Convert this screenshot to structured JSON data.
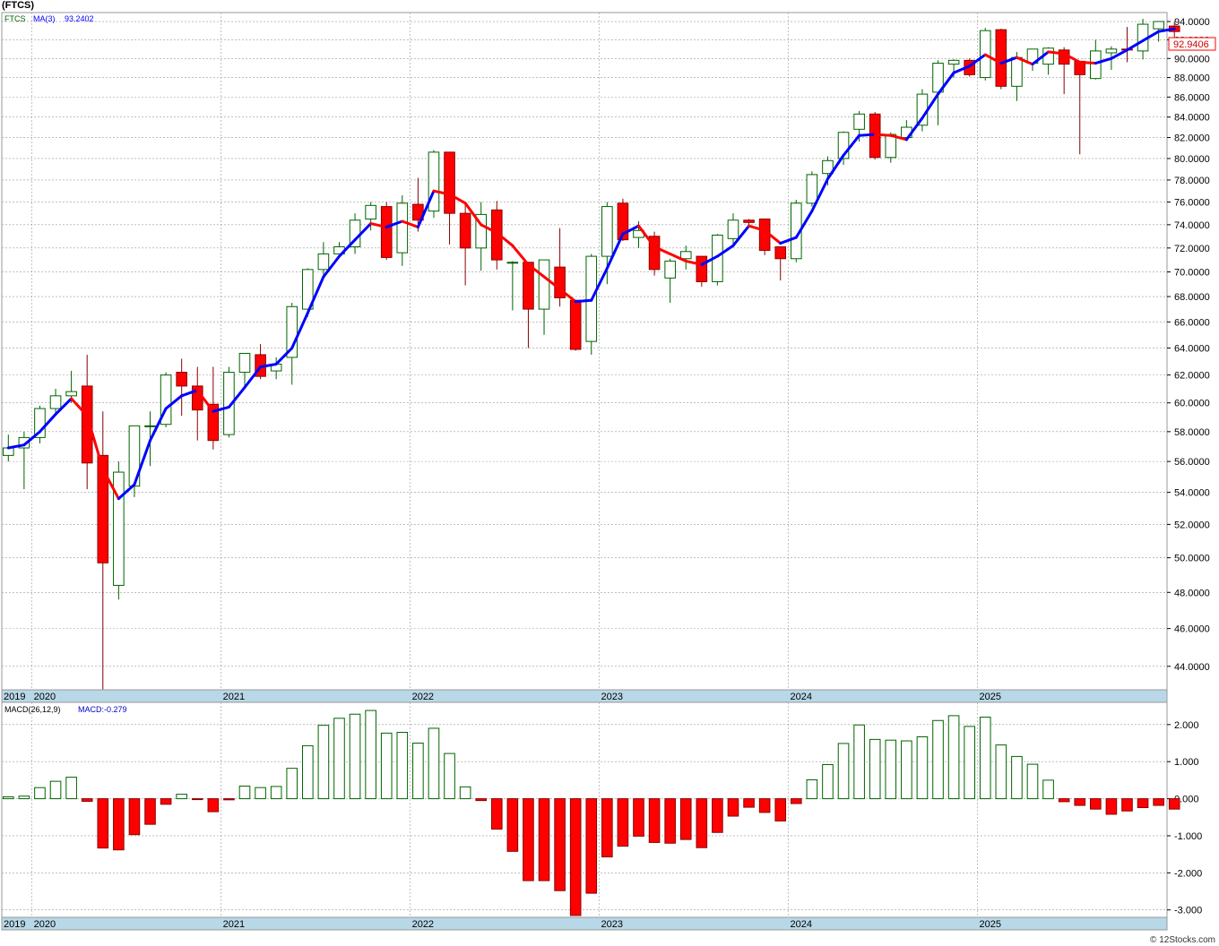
{
  "ticker_title": "(FTCS)",
  "credit": "© 12Stocks.com",
  "price_panel": {
    "legend_symbol": "FTCS",
    "legend_ma_label": "MA(3)",
    "legend_ma_value": "93.2402",
    "last_price_label": "92.9406"
  },
  "macd_panel": {
    "legend_macd_params": "MACD(26,12,9)",
    "legend_macd_value": "MACD:-0.279"
  },
  "colors": {
    "up_fill": "#ffffff",
    "up_stroke": "#006400",
    "down_fill": "#ff0000",
    "down_stroke": "#8b0000",
    "ma_up": "#0000ff",
    "ma_down": "#ff0000",
    "axis_band": "#b8d8e8",
    "grid": "#999999"
  },
  "chart_data": [
    {
      "type": "candlestick",
      "title": "(FTCS)",
      "interval": "monthly",
      "x_start": "2019-11",
      "x_tick_labels": [
        "2019",
        "2020",
        "2021",
        "2022",
        "2023",
        "2024",
        "2025"
      ],
      "y_tick_labels": [
        "44.0000",
        "46.0000",
        "48.0000",
        "50.0000",
        "52.0000",
        "54.0000",
        "56.0000",
        "58.0000",
        "60.0000",
        "62.0000",
        "64.0000",
        "66.0000",
        "68.0000",
        "70.0000",
        "72.0000",
        "74.0000",
        "76.0000",
        "78.0000",
        "80.0000",
        "82.0000",
        "84.0000",
        "86.0000",
        "88.0000",
        "90.0000",
        "92.0000",
        "94.0000"
      ],
      "ylim": [
        42.8,
        95.0
      ],
      "y_scale": "log",
      "grid": true,
      "ohlc": [
        [
          56.4,
          57.8,
          56.0,
          56.9
        ],
        [
          56.9,
          58.0,
          54.2,
          57.6
        ],
        [
          57.6,
          59.8,
          57.2,
          59.6
        ],
        [
          59.6,
          61.0,
          59.1,
          60.5
        ],
        [
          60.5,
          62.3,
          60.0,
          60.8
        ],
        [
          61.2,
          63.5,
          54.2,
          55.9
        ],
        [
          56.4,
          59.4,
          42.8,
          49.7
        ],
        [
          48.4,
          56.0,
          47.6,
          55.3
        ],
        [
          54.4,
          58.4,
          53.7,
          58.4
        ],
        [
          58.4,
          59.4,
          55.7,
          58.4
        ],
        [
          58.5,
          62.2,
          58.3,
          62.0
        ],
        [
          62.2,
          63.2,
          59.1,
          61.2
        ],
        [
          61.2,
          62.6,
          57.4,
          59.5
        ],
        [
          59.9,
          62.6,
          56.8,
          57.4
        ],
        [
          57.8,
          62.6,
          57.6,
          62.2
        ],
        [
          62.2,
          63.6,
          61.2,
          63.6
        ],
        [
          63.5,
          64.3,
          61.7,
          61.9
        ],
        [
          62.3,
          63.3,
          61.7,
          62.8
        ],
        [
          63.3,
          67.5,
          61.3,
          67.2
        ],
        [
          67.0,
          70.3,
          66.4,
          70.2
        ],
        [
          70.2,
          72.5,
          69.6,
          71.5
        ],
        [
          71.5,
          72.5,
          71.5,
          72.1
        ],
        [
          72.1,
          75.0,
          71.5,
          74.4
        ],
        [
          74.5,
          76.0,
          73.5,
          75.7
        ],
        [
          75.6,
          76.0,
          71.0,
          71.2
        ],
        [
          71.6,
          76.6,
          70.5,
          75.9
        ],
        [
          75.8,
          78.2,
          73.4,
          74.4
        ],
        [
          75.2,
          80.8,
          74.6,
          80.6
        ],
        [
          80.6,
          80.6,
          72.3,
          75.0
        ],
        [
          75.0,
          75.9,
          68.9,
          72.0
        ],
        [
          72.0,
          76.0,
          70.1,
          74.9
        ],
        [
          75.3,
          76.1,
          70.2,
          71.0
        ],
        [
          70.8,
          70.9,
          66.9,
          70.8
        ],
        [
          70.8,
          70.8,
          64.0,
          67.0
        ],
        [
          67.0,
          71.0,
          65.0,
          71.0
        ],
        [
          70.4,
          73.7,
          67.2,
          67.9
        ],
        [
          67.7,
          67.7,
          63.8,
          63.9
        ],
        [
          64.5,
          71.5,
          63.5,
          71.3
        ],
        [
          71.3,
          76.0,
          69.0,
          75.6
        ],
        [
          75.9,
          76.3,
          72.6,
          72.7
        ],
        [
          72.9,
          74.3,
          72.0,
          73.5
        ],
        [
          73.0,
          73.4,
          69.7,
          70.2
        ],
        [
          69.5,
          71.1,
          67.5,
          70.9
        ],
        [
          71.1,
          72.2,
          70.2,
          71.7
        ],
        [
          71.3,
          71.3,
          68.8,
          69.2
        ],
        [
          69.2,
          73.2,
          68.9,
          73.1
        ],
        [
          72.8,
          75.0,
          72.1,
          74.4
        ],
        [
          74.4,
          74.5,
          74.0,
          74.2
        ],
        [
          74.5,
          74.5,
          71.4,
          71.8
        ],
        [
          72.1,
          72.1,
          69.3,
          71.1
        ],
        [
          71.1,
          76.2,
          70.8,
          75.9
        ],
        [
          75.9,
          78.8,
          75.6,
          78.5
        ],
        [
          78.6,
          80.2,
          77.5,
          79.8
        ],
        [
          80.0,
          82.6,
          79.4,
          82.5
        ],
        [
          82.8,
          84.6,
          81.6,
          84.3
        ],
        [
          84.3,
          84.5,
          79.9,
          80.1
        ],
        [
          80.1,
          82.5,
          79.6,
          82.3
        ],
        [
          82.0,
          83.7,
          81.8,
          83.0
        ],
        [
          83.2,
          86.8,
          82.6,
          86.3
        ],
        [
          86.5,
          89.8,
          83.2,
          89.5
        ],
        [
          89.4,
          89.9,
          88.0,
          89.8
        ],
        [
          89.8,
          90.0,
          88.1,
          88.3
        ],
        [
          88.0,
          93.3,
          87.7,
          93.0
        ],
        [
          93.1,
          93.2,
          86.8,
          87.1
        ],
        [
          87.1,
          90.7,
          85.6,
          90.1
        ],
        [
          89.5,
          91.0,
          88.7,
          91.0
        ],
        [
          89.4,
          91.2,
          88.3,
          91.1
        ],
        [
          90.9,
          91.2,
          86.3,
          89.4
        ],
        [
          89.7,
          89.7,
          80.4,
          88.3
        ],
        [
          87.9,
          92.0,
          87.8,
          90.8
        ],
        [
          90.6,
          91.3,
          88.8,
          91.0
        ],
        [
          91.0,
          93.4,
          89.6,
          90.9
        ],
        [
          90.8,
          94.3,
          89.9,
          93.7
        ],
        [
          93.2,
          94.0,
          91.8,
          94.0
        ],
        [
          93.5,
          94.0,
          92.0,
          92.9
        ]
      ],
      "ma3": [
        56.9,
        57.1,
        58.0,
        59.2,
        60.3,
        59.1,
        55.5,
        53.6,
        54.5,
        57.4,
        59.6,
        60.5,
        60.9,
        59.4,
        59.7,
        61.1,
        62.6,
        62.8,
        64.0,
        66.7,
        69.6,
        71.3,
        72.7,
        74.1,
        73.8,
        74.3,
        73.8,
        77.0,
        76.7,
        75.9,
        74.0,
        73.3,
        72.2,
        70.6,
        69.6,
        68.6,
        67.6,
        67.7,
        70.3,
        73.2,
        73.9,
        72.1,
        71.5,
        70.9,
        70.6,
        71.3,
        72.2,
        73.9,
        73.5,
        72.4,
        72.9,
        75.2,
        78.1,
        80.3,
        82.2,
        82.3,
        82.2,
        81.8,
        83.9,
        86.3,
        88.5,
        89.2,
        90.4,
        89.5,
        90.1,
        89.4,
        90.7,
        90.5,
        89.6,
        89.5,
        90.0,
        90.9,
        91.9,
        92.9,
        93.2
      ],
      "ma3_color_rule": "blue when rising, red when falling"
    },
    {
      "type": "bar",
      "title": "MACD(26,12,9)",
      "series_name": "MACD",
      "y_tick_labels": [
        "-3.000",
        "-2.000",
        "-1.000",
        "0.000",
        "1.000",
        "2.000"
      ],
      "ylim": [
        -3.2,
        2.6
      ],
      "grid": true,
      "values": [
        0.05,
        0.07,
        0.3,
        0.47,
        0.58,
        -0.07,
        -1.33,
        -1.38,
        -0.97,
        -0.69,
        -0.15,
        0.12,
        -0.02,
        -0.35,
        -0.03,
        0.34,
        0.3,
        0.33,
        0.82,
        1.43,
        1.98,
        2.17,
        2.28,
        2.38,
        1.77,
        1.79,
        1.5,
        1.9,
        1.22,
        0.32,
        -0.05,
        -0.82,
        -1.42,
        -2.21,
        -2.21,
        -2.48,
        -3.15,
        -2.55,
        -1.57,
        -1.28,
        -1.01,
        -1.18,
        -1.2,
        -1.1,
        -1.32,
        -0.91,
        -0.47,
        -0.23,
        -0.37,
        -0.6,
        -0.13,
        0.51,
        0.92,
        1.49,
        1.99,
        1.6,
        1.58,
        1.56,
        1.67,
        2.11,
        2.24,
        1.95,
        2.2,
        1.45,
        1.14,
        0.93,
        0.5,
        -0.08,
        -0.18,
        -0.28,
        -0.42,
        -0.33,
        -0.24,
        -0.18,
        -0.28
      ]
    }
  ]
}
